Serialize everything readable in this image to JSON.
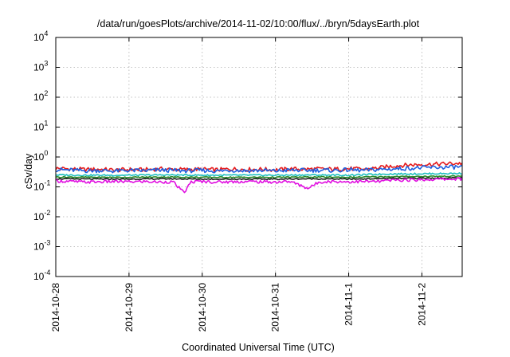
{
  "chart_data": {
    "type": "line",
    "title": "/data/run/goesPlots/archive/2014-11-02/10:00/flux/../bryn/5daysEarth.plot",
    "xlabel": "Coordinated Universal Time (UTC)",
    "ylabel": "cSv/day",
    "yscale": "log",
    "ylim": [
      0.0001,
      10000
    ],
    "xlim": [
      0,
      5.55
    ],
    "grid": true,
    "y_ticks": [
      {
        "base": "10",
        "exp": "-4",
        "value": 0.0001
      },
      {
        "base": "10",
        "exp": "-3",
        "value": 0.001
      },
      {
        "base": "10",
        "exp": "-2",
        "value": 0.01
      },
      {
        "base": "10",
        "exp": "-1",
        "value": 0.1
      },
      {
        "base": "10",
        "exp": "0",
        "value": 1
      },
      {
        "base": "10",
        "exp": "1",
        "value": 10
      },
      {
        "base": "10",
        "exp": "2",
        "value": 100
      },
      {
        "base": "10",
        "exp": "3",
        "value": 1000
      },
      {
        "base": "10",
        "exp": "4",
        "value": 10000
      }
    ],
    "x_ticks": [
      {
        "label": "2014-10-28",
        "value": 0
      },
      {
        "label": "2014-10-29",
        "value": 1
      },
      {
        "label": "2014-10-30",
        "value": 2
      },
      {
        "label": "2014-10-31",
        "value": 3
      },
      {
        "label": "2014-11-1",
        "value": 4
      },
      {
        "label": "2014-11-2",
        "value": 5
      }
    ],
    "series": [
      {
        "color": "#e41a1c",
        "values_log10": [
          [
            0,
            -0.38
          ],
          [
            0.2,
            -0.4
          ],
          [
            0.4,
            -0.42
          ],
          [
            0.6,
            -0.41
          ],
          [
            0.8,
            -0.44
          ],
          [
            1.0,
            -0.42
          ],
          [
            1.2,
            -0.43
          ],
          [
            1.4,
            -0.4
          ],
          [
            1.6,
            -0.41
          ],
          [
            1.8,
            -0.42
          ],
          [
            2.0,
            -0.41
          ],
          [
            2.2,
            -0.43
          ],
          [
            2.4,
            -0.4
          ],
          [
            2.6,
            -0.42
          ],
          [
            2.8,
            -0.41
          ],
          [
            3.0,
            -0.43
          ],
          [
            3.2,
            -0.4
          ],
          [
            3.4,
            -0.41
          ],
          [
            3.6,
            -0.4
          ],
          [
            3.8,
            -0.41
          ],
          [
            4.0,
            -0.39
          ],
          [
            4.2,
            -0.41
          ],
          [
            4.4,
            -0.37
          ],
          [
            4.6,
            -0.3
          ],
          [
            4.8,
            -0.27
          ],
          [
            5.0,
            -0.25
          ],
          [
            5.2,
            -0.24
          ],
          [
            5.4,
            -0.22
          ],
          [
            5.55,
            -0.21
          ]
        ]
      },
      {
        "color": "#1f5fe0",
        "values_log10": [
          [
            0,
            -0.42
          ],
          [
            0.2,
            -0.44
          ],
          [
            0.4,
            -0.46
          ],
          [
            0.6,
            -0.45
          ],
          [
            0.8,
            -0.47
          ],
          [
            1.0,
            -0.45
          ],
          [
            1.2,
            -0.46
          ],
          [
            1.4,
            -0.44
          ],
          [
            1.6,
            -0.45
          ],
          [
            1.8,
            -0.46
          ],
          [
            2.0,
            -0.45
          ],
          [
            2.2,
            -0.47
          ],
          [
            2.4,
            -0.44
          ],
          [
            2.6,
            -0.46
          ],
          [
            2.8,
            -0.45
          ],
          [
            3.0,
            -0.47
          ],
          [
            3.2,
            -0.44
          ],
          [
            3.4,
            -0.45
          ],
          [
            3.6,
            -0.44
          ],
          [
            3.8,
            -0.45
          ],
          [
            4.0,
            -0.43
          ],
          [
            4.2,
            -0.45
          ],
          [
            4.4,
            -0.42
          ],
          [
            4.6,
            -0.4
          ],
          [
            4.8,
            -0.38
          ],
          [
            5.0,
            -0.36
          ],
          [
            5.2,
            -0.35
          ],
          [
            5.4,
            -0.34
          ],
          [
            5.55,
            -0.33
          ]
        ]
      },
      {
        "color": "#1fbfbf",
        "values_log10": [
          [
            0,
            -0.6
          ],
          [
            0.5,
            -0.61
          ],
          [
            1.0,
            -0.61
          ],
          [
            1.5,
            -0.6
          ],
          [
            2.0,
            -0.61
          ],
          [
            2.5,
            -0.61
          ],
          [
            3.0,
            -0.61
          ],
          [
            3.5,
            -0.6
          ],
          [
            4.0,
            -0.61
          ],
          [
            4.5,
            -0.57
          ],
          [
            5.0,
            -0.56
          ],
          [
            5.55,
            -0.55
          ]
        ]
      },
      {
        "color": "#2a8a2a",
        "values_log10": [
          [
            0,
            -0.67
          ],
          [
            0.5,
            -0.68
          ],
          [
            1.0,
            -0.68
          ],
          [
            1.5,
            -0.67
          ],
          [
            2.0,
            -0.68
          ],
          [
            2.5,
            -0.68
          ],
          [
            3.0,
            -0.68
          ],
          [
            3.5,
            -0.67
          ],
          [
            4.0,
            -0.68
          ],
          [
            4.5,
            -0.66
          ],
          [
            5.0,
            -0.65
          ],
          [
            5.55,
            -0.64
          ]
        ]
      },
      {
        "color": "#202020",
        "values_log10": [
          [
            0,
            -0.73
          ],
          [
            0.5,
            -0.74
          ],
          [
            1.0,
            -0.74
          ],
          [
            1.5,
            -0.73
          ],
          [
            2.0,
            -0.74
          ],
          [
            2.5,
            -0.74
          ],
          [
            3.0,
            -0.74
          ],
          [
            3.5,
            -0.73
          ],
          [
            4.0,
            -0.74
          ],
          [
            4.5,
            -0.72
          ],
          [
            5.0,
            -0.71
          ],
          [
            5.55,
            -0.7
          ]
        ]
      },
      {
        "color": "#e010e0",
        "values_log10": [
          [
            0,
            -0.8
          ],
          [
            0.2,
            -0.82
          ],
          [
            0.4,
            -0.84
          ],
          [
            0.6,
            -0.83
          ],
          [
            0.8,
            -0.82
          ],
          [
            1.0,
            -0.83
          ],
          [
            1.2,
            -0.82
          ],
          [
            1.4,
            -0.84
          ],
          [
            1.6,
            -0.83
          ],
          [
            1.75,
            -1.2
          ],
          [
            1.85,
            -0.83
          ],
          [
            2.0,
            -0.82
          ],
          [
            2.2,
            -0.84
          ],
          [
            2.4,
            -0.83
          ],
          [
            2.6,
            -0.82
          ],
          [
            2.8,
            -0.83
          ],
          [
            3.0,
            -0.84
          ],
          [
            3.2,
            -0.82
          ],
          [
            3.45,
            -1.05
          ],
          [
            3.6,
            -0.83
          ],
          [
            3.8,
            -0.82
          ],
          [
            4.0,
            -0.83
          ],
          [
            4.2,
            -0.82
          ],
          [
            4.4,
            -0.82
          ],
          [
            4.6,
            -0.78
          ],
          [
            4.8,
            -0.77
          ],
          [
            5.0,
            -0.76
          ],
          [
            5.2,
            -0.75
          ],
          [
            5.4,
            -0.74
          ],
          [
            5.55,
            -0.73
          ]
        ]
      }
    ]
  }
}
